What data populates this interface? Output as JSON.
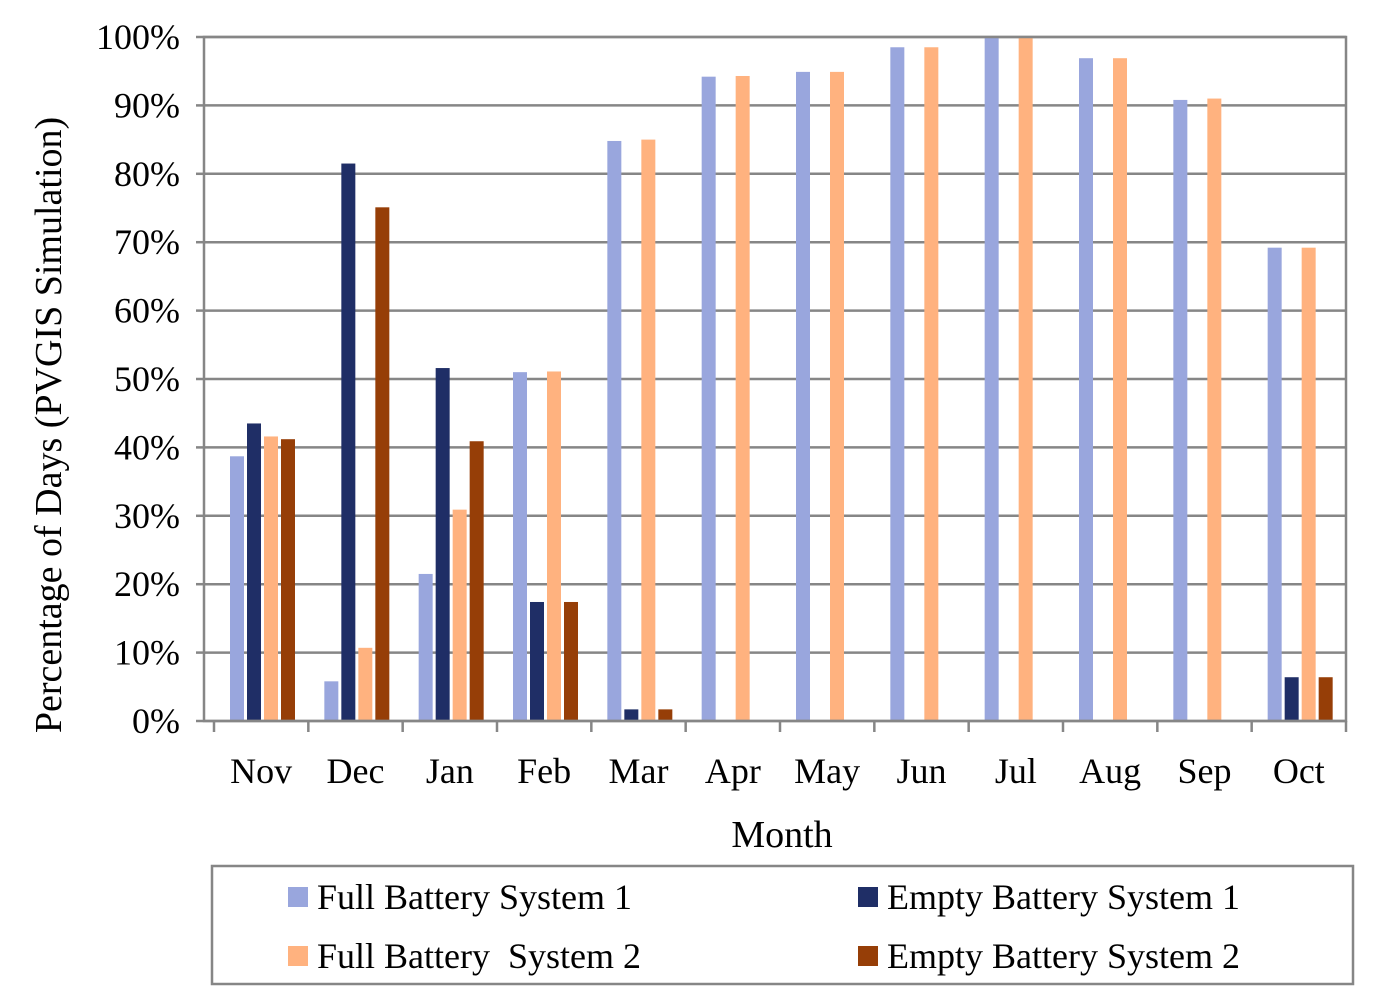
{
  "chart_data": {
    "type": "bar",
    "categories": [
      "Nov",
      "Dec",
      "Jan",
      "Feb",
      "Mar",
      "Apr",
      "May",
      "Jun",
      "Jul",
      "Aug",
      "Sep",
      "Oct"
    ],
    "series": [
      {
        "name": "Full Battery System 1",
        "color": "#99a6dd",
        "values": [
          38.7,
          5.8,
          21.5,
          51.0,
          84.8,
          94.2,
          94.9,
          98.5,
          100.0,
          96.9,
          90.8,
          69.2
        ]
      },
      {
        "name": "Empty Battery System 1",
        "color": "#1f2e66",
        "values": [
          43.5,
          81.5,
          51.6,
          17.4,
          1.7,
          0,
          0,
          0,
          0,
          0,
          0,
          6.4
        ]
      },
      {
        "name": "Full Battery  System 2",
        "color": "#ffb27f",
        "values": [
          41.6,
          10.7,
          30.9,
          51.1,
          85.0,
          94.3,
          94.9,
          98.5,
          100.0,
          96.9,
          91.0,
          69.2
        ]
      },
      {
        "name": "Empty Battery System 2",
        "color": "#963e07",
        "values": [
          41.2,
          75.1,
          40.9,
          17.4,
          1.7,
          0,
          0,
          0,
          0,
          0,
          0,
          6.4
        ]
      }
    ],
    "title": "",
    "xlabel": "Month",
    "ylabel": "Percentage of Days (PVGIS Simulation)",
    "ylim": [
      0,
      100
    ],
    "ytick_step": 10,
    "y_tick_format": "percent",
    "grid": true,
    "legend_position": "bottom"
  }
}
